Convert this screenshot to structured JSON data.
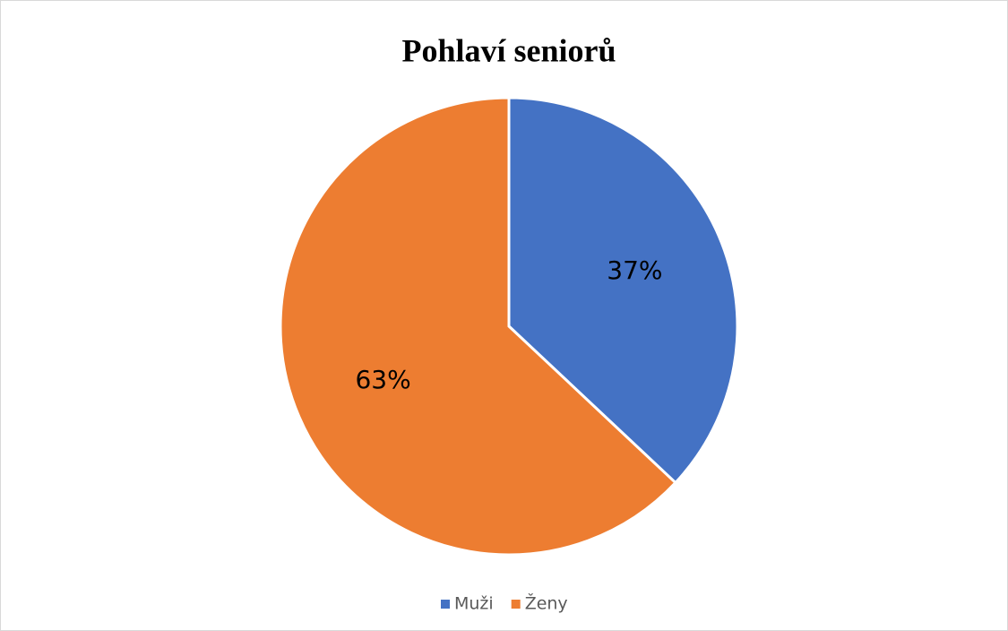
{
  "chart_data": {
    "type": "pie",
    "title": "Pohlaví seniorů",
    "categories": [
      "Muži",
      "Ženy"
    ],
    "values": [
      37,
      63
    ],
    "value_labels": [
      "37%",
      "63%"
    ],
    "colors": [
      "#4472c4",
      "#ed7d31"
    ],
    "legend": "bottom"
  }
}
